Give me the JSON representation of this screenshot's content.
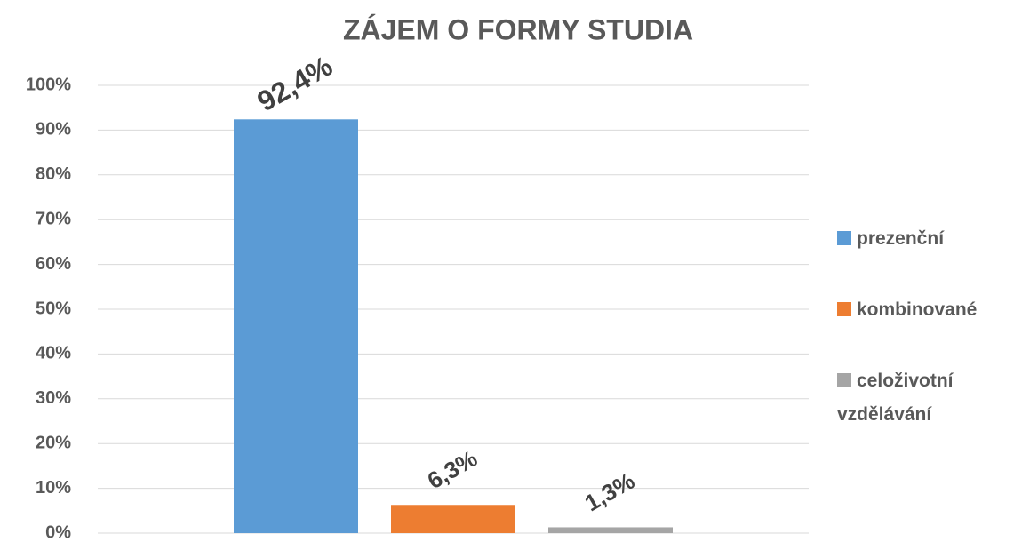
{
  "chart_data": {
    "type": "bar",
    "title": "ZÁJEM O FORMY STUDIA",
    "categories": [
      null
    ],
    "series": [
      {
        "name": "prezenční",
        "color": "#5b9bd5",
        "values": [
          92.4
        ],
        "value_labels": [
          "92,4%"
        ]
      },
      {
        "name": "kombinované",
        "color": "#ed7d31",
        "values": [
          6.3
        ],
        "value_labels": [
          "6,3%"
        ]
      },
      {
        "name": "celoživotní vzdělávání",
        "color": "#a5a5a5",
        "values": [
          1.3
        ],
        "value_labels": [
          "1,3%"
        ]
      }
    ],
    "ylim": [
      0,
      100
    ],
    "yticks": [
      {
        "value": 0,
        "label": "0%"
      },
      {
        "value": 10,
        "label": "10%"
      },
      {
        "value": 20,
        "label": "20%"
      },
      {
        "value": 30,
        "label": "30%"
      },
      {
        "value": 40,
        "label": "40%"
      },
      {
        "value": 50,
        "label": "50%"
      },
      {
        "value": 60,
        "label": "60%"
      },
      {
        "value": 70,
        "label": "70%"
      },
      {
        "value": 80,
        "label": "80%"
      },
      {
        "value": 90,
        "label": "90%"
      },
      {
        "value": 100,
        "label": "100%"
      }
    ],
    "grid": true,
    "legend": "right"
  }
}
